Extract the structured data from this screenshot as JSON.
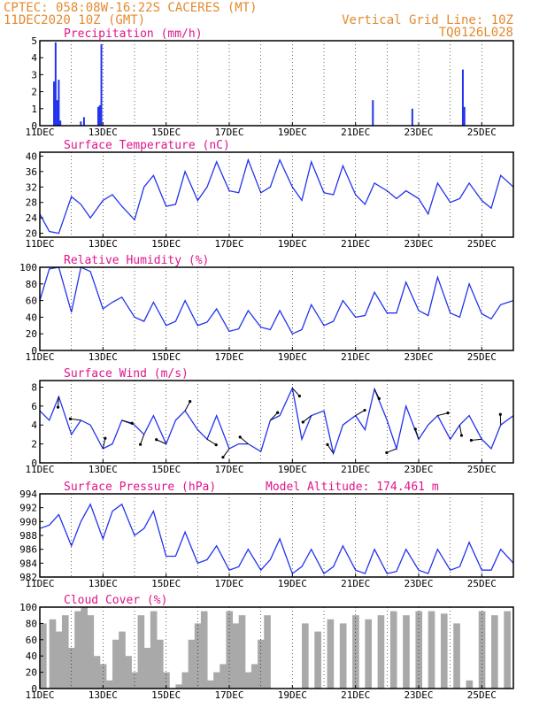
{
  "header": {
    "line1_left": "CPTEC:   058:08W-16:22S   CACERES (MT)",
    "line2_left": "11DEC2020 10Z (GMT)",
    "line1_right": "Vertical Grid Line: 10Z",
    "line2_right": "TQ0126L028"
  },
  "colors": {
    "header": "#e38a2e",
    "title": "#e0148c",
    "line": "#2233ee",
    "bar": "#2233ee",
    "cloud": "#a9a9a9",
    "arrow": "#000000"
  },
  "x_ticks": [
    "11DEC",
    "13DEC",
    "15DEC",
    "17DEC",
    "19DEC",
    "21DEC",
    "23DEC",
    "25DEC"
  ],
  "chart_data": [
    {
      "type": "bar",
      "title": "Precipitation (mm/h)",
      "ylim": [
        0,
        5
      ],
      "yticks": [
        "0",
        "1",
        "2",
        "3",
        "4",
        "5"
      ],
      "x_days": [
        0.45,
        0.5,
        0.55,
        0.6,
        0.65,
        1.3,
        1.4,
        1.85,
        1.9,
        1.95,
        10.55,
        11.8,
        13.4,
        13.45
      ],
      "values": [
        2.6,
        4.9,
        1.5,
        2.7,
        0.3,
        0.25,
        0.5,
        1.1,
        1.2,
        4.8,
        1.5,
        1.0,
        3.3,
        1.1
      ]
    },
    {
      "type": "line",
      "title": "Surface Temperature (nC)",
      "ylim": [
        19,
        41
      ],
      "yticks": [
        "20",
        "24",
        "28",
        "32",
        "36",
        "40"
      ],
      "x_days": [
        0,
        0.3,
        0.6,
        1.0,
        1.3,
        1.6,
        2.0,
        2.3,
        2.6,
        3.0,
        3.3,
        3.6,
        4.0,
        4.3,
        4.6,
        5.0,
        5.3,
        5.6,
        6.0,
        6.3,
        6.6,
        7.0,
        7.3,
        7.6,
        8.0,
        8.3,
        8.6,
        9.0,
        9.3,
        9.6,
        10.0,
        10.3,
        10.6,
        11.0,
        11.3,
        11.6,
        12.0,
        12.3,
        12.6,
        13.0,
        13.3,
        13.6,
        14.0,
        14.3,
        14.6,
        15.0
      ],
      "values": [
        25,
        20.5,
        20,
        29.5,
        27.5,
        24,
        28.5,
        30,
        27,
        23.5,
        32,
        35,
        27,
        27.5,
        36,
        28.5,
        32,
        38.5,
        31,
        30.5,
        39,
        30.5,
        32,
        39,
        32,
        28.5,
        38.5,
        30.5,
        30,
        37.5,
        30,
        27.5,
        33,
        31,
        29,
        31,
        29,
        25,
        33,
        28,
        29,
        33,
        28.5,
        26.5,
        35,
        32
      ]
    },
    {
      "type": "line",
      "title": "Relative Humidity (%)",
      "ylim": [
        0,
        100
      ],
      "yticks": [
        "0",
        "20",
        "40",
        "60",
        "80",
        "100"
      ],
      "x_days": [
        0,
        0.3,
        0.6,
        1.0,
        1.3,
        1.6,
        2.0,
        2.3,
        2.6,
        3.0,
        3.3,
        3.6,
        4.0,
        4.3,
        4.6,
        5.0,
        5.3,
        5.6,
        6.0,
        6.3,
        6.6,
        7.0,
        7.3,
        7.6,
        8.0,
        8.3,
        8.6,
        9.0,
        9.3,
        9.6,
        10.0,
        10.3,
        10.6,
        11.0,
        11.3,
        11.6,
        12.0,
        12.3,
        12.6,
        13.0,
        13.3,
        13.6,
        14.0,
        14.3,
        14.6,
        15.0
      ],
      "values": [
        60,
        98,
        100,
        46,
        100,
        95,
        50,
        58,
        64,
        40,
        35,
        58,
        30,
        35,
        60,
        30,
        34,
        50,
        23,
        26,
        48,
        28,
        25,
        48,
        20,
        25,
        55,
        30,
        35,
        60,
        40,
        42,
        70,
        45,
        45,
        82,
        48,
        42,
        88,
        45,
        40,
        80,
        44,
        38,
        55,
        60
      ]
    },
    {
      "type": "line",
      "title": "Surface Wind (m/s)",
      "ylim": [
        0,
        8.7
      ],
      "yticks": [
        "0",
        "2",
        "4",
        "6",
        "8"
      ],
      "x_days": [
        0,
        0.3,
        0.6,
        1.0,
        1.3,
        1.6,
        2.0,
        2.3,
        2.6,
        3.0,
        3.3,
        3.6,
        4.0,
        4.3,
        4.6,
        5.0,
        5.3,
        5.6,
        6.0,
        6.3,
        6.6,
        7.0,
        7.3,
        7.6,
        8.0,
        8.3,
        8.6,
        9.0,
        9.3,
        9.6,
        10.0,
        10.3,
        10.6,
        11.0,
        11.3,
        11.6,
        12.0,
        12.3,
        12.6,
        13.0,
        13.3,
        13.6,
        14.0,
        14.3,
        14.6,
        15.0
      ],
      "values": [
        5.5,
        4.5,
        7,
        3,
        4.5,
        4,
        1.5,
        2,
        4.5,
        4,
        3,
        5,
        2,
        4.5,
        5.5,
        3.5,
        2.5,
        5,
        1.5,
        2,
        2,
        1.2,
        4.5,
        5,
        7.9,
        2.5,
        5,
        5.5,
        1,
        4,
        5,
        3.5,
        7.8,
        4.5,
        1.5,
        6,
        2.5,
        4,
        5,
        2.5,
        4,
        5,
        2.5,
        1.5,
        4,
        5
      ]
    },
    {
      "type": "line",
      "title": "Surface Pressure (hPa)",
      "annotation": "Model Altitude: 174.461 m",
      "ylim": [
        982,
        994
      ],
      "yticks": [
        "982",
        "984",
        "986",
        "988",
        "990",
        "992",
        "994"
      ],
      "x_days": [
        0,
        0.3,
        0.6,
        1.0,
        1.3,
        1.6,
        2.0,
        2.3,
        2.6,
        3.0,
        3.3,
        3.6,
        4.0,
        4.3,
        4.6,
        5.0,
        5.3,
        5.6,
        6.0,
        6.3,
        6.6,
        7.0,
        7.3,
        7.6,
        8.0,
        8.3,
        8.6,
        9.0,
        9.3,
        9.6,
        10.0,
        10.3,
        10.6,
        11.0,
        11.3,
        11.6,
        12.0,
        12.3,
        12.6,
        13.0,
        13.3,
        13.6,
        14.0,
        14.3,
        14.6,
        15.0
      ],
      "values": [
        989,
        989.5,
        991,
        986.5,
        990,
        992.5,
        987.5,
        991.5,
        992.5,
        988,
        989,
        991.5,
        985,
        985,
        988.5,
        984,
        984.5,
        986.5,
        983,
        983.5,
        986,
        983,
        984.5,
        987.5,
        982.5,
        983.5,
        986,
        982.5,
        983.5,
        986.5,
        983,
        982.5,
        986,
        982.5,
        982.8,
        986,
        983,
        982.5,
        986,
        983,
        983.5,
        987,
        983,
        983,
        986,
        984
      ]
    },
    {
      "type": "area",
      "title": "Cloud Cover (%)",
      "ylim": [
        0,
        100
      ],
      "yticks": [
        "0",
        "20",
        "40",
        "60",
        "80",
        "100"
      ],
      "x_days": [
        0,
        0.3,
        0.5,
        0.7,
        0.9,
        1.1,
        1.3,
        1.5,
        1.7,
        1.9,
        2.1,
        2.3,
        2.5,
        2.7,
        2.9,
        3.1,
        3.3,
        3.5,
        3.7,
        3.9,
        4.1,
        4.3,
        4.5,
        4.7,
        4.9,
        5.1,
        5.3,
        5.5,
        5.7,
        5.9,
        6.1,
        6.3,
        6.5,
        6.7,
        6.9,
        7.1,
        7.3,
        7.5,
        7.7,
        7.9,
        8.3,
        8.7,
        9.1,
        9.5,
        9.9,
        10.3,
        10.7,
        11.1,
        11.5,
        11.9,
        12.3,
        12.7,
        13.1,
        13.5,
        13.9,
        14.3,
        14.7,
        15.0
      ],
      "values": [
        80,
        85,
        70,
        90,
        50,
        95,
        100,
        90,
        40,
        30,
        10,
        60,
        70,
        40,
        20,
        90,
        50,
        95,
        60,
        20,
        0,
        5,
        20,
        60,
        80,
        95,
        10,
        20,
        30,
        95,
        80,
        90,
        20,
        30,
        60,
        90,
        0,
        0,
        0,
        0,
        80,
        70,
        85,
        80,
        90,
        85,
        90,
        95,
        90,
        95,
        95,
        92,
        80,
        10,
        95,
        90,
        95,
        92
      ]
    }
  ]
}
